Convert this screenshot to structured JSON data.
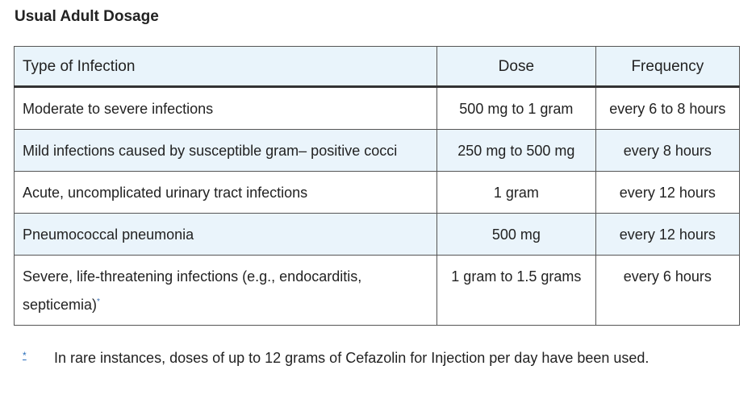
{
  "title": "Usual Adult Dosage",
  "table": {
    "header": [
      "Type of Infection",
      "Dose",
      "Frequency"
    ],
    "rows": [
      [
        "Moderate to severe infections",
        "500 mg to 1 gram",
        "every 6 to 8 hours"
      ],
      [
        "Mild infections caused by susceptible gram– positive cocci",
        "250 mg to 500 mg",
        "every 8 hours"
      ],
      [
        "Acute, uncomplicated urinary tract infections",
        "1 gram",
        "every 12 hours"
      ],
      [
        "Pneumococcal pneumonia",
        "500 mg",
        "every 12 hours"
      ],
      [
        "Severe, life-threatening infections (e.g., endocarditis, septicemia)",
        "1 gram to 1.5 grams",
        "every 6 hours"
      ]
    ],
    "note_ref": "*"
  },
  "footnote": {
    "marker": "*",
    "text": "In rare instances, doses of up to 12 grams of Cefazolin for Injection per day have been used."
  }
}
